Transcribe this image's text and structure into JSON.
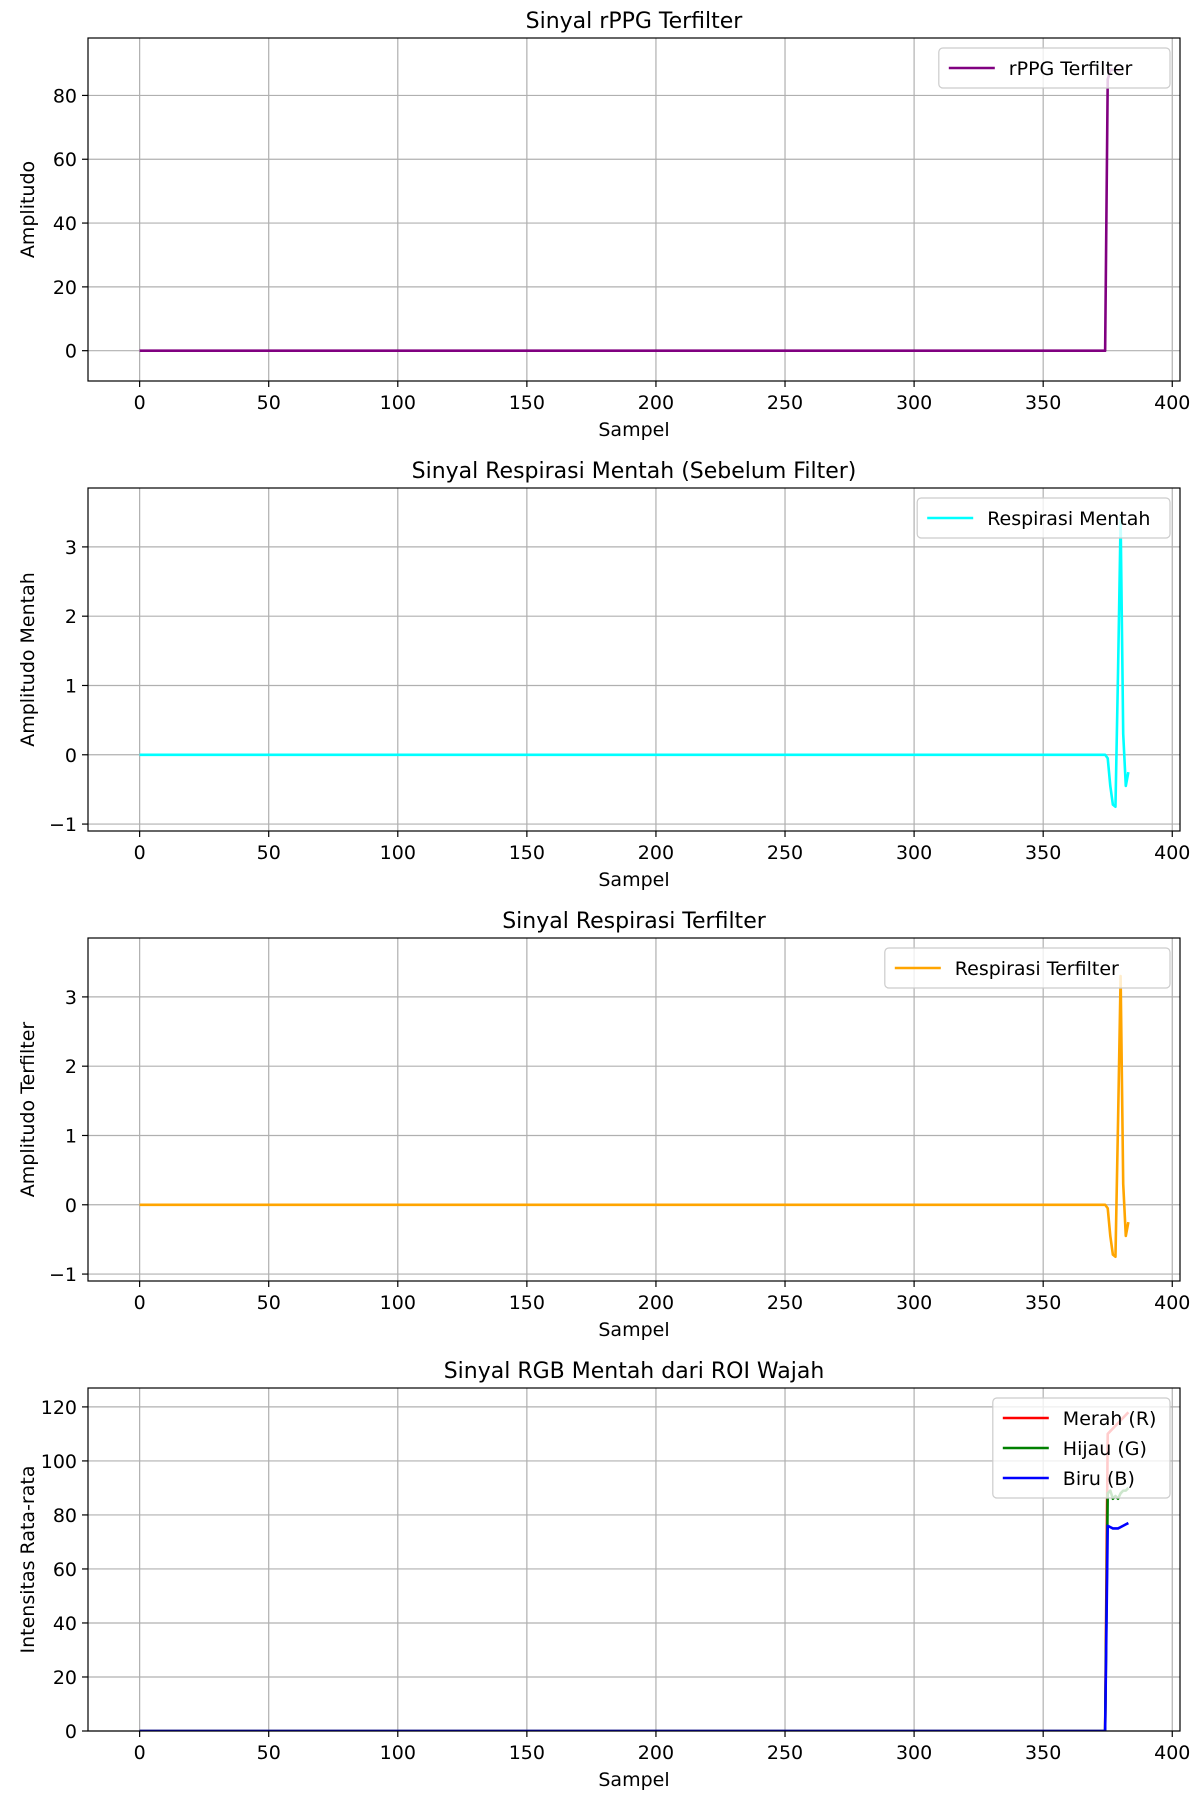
{
  "chart_data": [
    {
      "type": "line",
      "title": "Sinyal rPPG Terfilter",
      "xlabel": "Sampel",
      "ylabel": "Amplitudo",
      "xlim": [
        -20,
        403
      ],
      "ylim": [
        -9.5,
        98
      ],
      "xticks": [
        0,
        50,
        100,
        150,
        200,
        250,
        300,
        350,
        400
      ],
      "yticks": [
        0,
        20,
        40,
        60,
        80
      ],
      "grid": true,
      "legend_position": "top-right",
      "series": [
        {
          "name": "rPPG Terfilter",
          "color": "#800080",
          "x": [
            0,
            374,
            375,
            376,
            380
          ],
          "y": [
            0,
            0,
            85,
            88,
            88
          ]
        }
      ]
    },
    {
      "type": "line",
      "title": "Sinyal Respirasi Mentah (Sebelum Filter)",
      "xlabel": "Sampel",
      "ylabel": "Amplitudo Mentah",
      "xlim": [
        -20,
        403
      ],
      "ylim": [
        -1.1,
        3.85
      ],
      "xticks": [
        0,
        50,
        100,
        150,
        200,
        250,
        300,
        350,
        400
      ],
      "yticks": [
        -1,
        0,
        1,
        2,
        3
      ],
      "grid": true,
      "legend_position": "top-right",
      "series": [
        {
          "name": "Respirasi Mentah",
          "color": "#00ffff",
          "x": [
            0,
            374,
            375,
            376,
            377,
            378,
            379,
            380,
            381,
            382,
            383
          ],
          "y": [
            0,
            0,
            -0.05,
            -0.45,
            -0.72,
            -0.75,
            1.2,
            3.4,
            0.3,
            -0.45,
            -0.25
          ]
        }
      ]
    },
    {
      "type": "line",
      "title": "Sinyal Respirasi Terfilter",
      "xlabel": "Sampel",
      "ylabel": "Amplitudo Terfilter",
      "xlim": [
        -20,
        403
      ],
      "ylim": [
        -1.1,
        3.85
      ],
      "xticks": [
        0,
        50,
        100,
        150,
        200,
        250,
        300,
        350,
        400
      ],
      "yticks": [
        -1,
        0,
        1,
        2,
        3
      ],
      "grid": true,
      "legend_position": "top-right",
      "series": [
        {
          "name": "Respirasi Terfilter",
          "color": "#ffa500",
          "x": [
            0,
            374,
            375,
            376,
            377,
            378,
            379,
            380,
            381,
            382,
            383
          ],
          "y": [
            0,
            0,
            -0.05,
            -0.45,
            -0.72,
            -0.75,
            1.2,
            3.3,
            0.3,
            -0.45,
            -0.25
          ]
        }
      ]
    },
    {
      "type": "line",
      "title": "Sinyal RGB Mentah dari ROI Wajah",
      "xlabel": "Sampel",
      "ylabel": "Intensitas Rata-rata",
      "xlim": [
        -20,
        403
      ],
      "ylim": [
        0,
        127
      ],
      "xticks": [
        0,
        50,
        100,
        150,
        200,
        250,
        300,
        350,
        400
      ],
      "yticks": [
        0,
        20,
        40,
        60,
        80,
        100,
        120
      ],
      "grid": true,
      "legend_position": "top-right",
      "series": [
        {
          "name": "Merah (R)",
          "color": "#ff0000",
          "x": [
            0,
            374,
            375,
            376,
            377,
            378,
            379,
            380,
            381,
            382,
            383
          ],
          "y": [
            0,
            0,
            110,
            111,
            112,
            113,
            114,
            115,
            116,
            117,
            118
          ]
        },
        {
          "name": "Hijau (G)",
          "color": "#008000",
          "x": [
            0,
            374,
            375,
            376,
            377,
            378,
            379,
            380,
            381,
            382,
            383
          ],
          "y": [
            0,
            0,
            88,
            89,
            86,
            87,
            86,
            88,
            89,
            89,
            90
          ]
        },
        {
          "name": "Biru (B)",
          "color": "#0000ff",
          "x": [
            0,
            374,
            375,
            376,
            377,
            378,
            379,
            380,
            381,
            382,
            383
          ],
          "y": [
            0,
            0,
            76,
            75.5,
            75,
            75,
            75,
            75.5,
            76,
            76.5,
            77
          ]
        }
      ]
    }
  ]
}
